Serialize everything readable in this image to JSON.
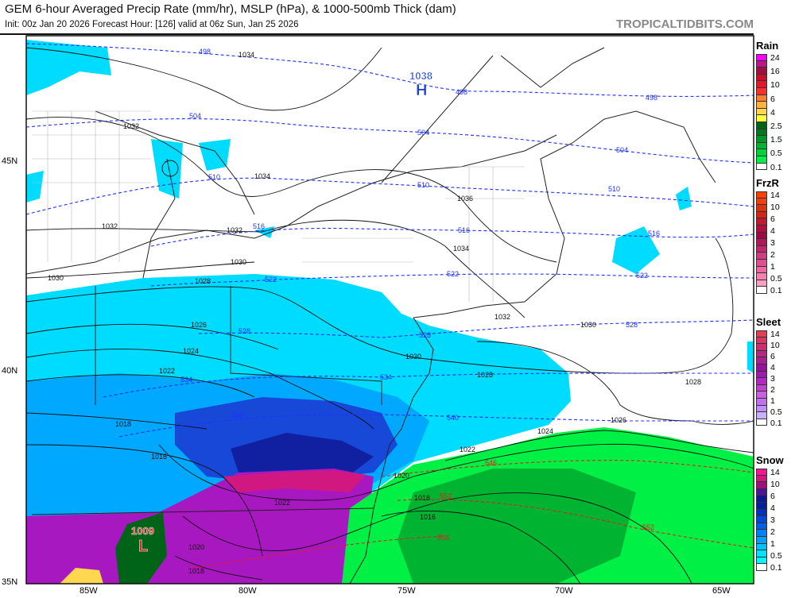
{
  "header": {
    "title": "GEM 6-hour Averaged Precip Rate (mm/hr), MSLP (hPa), & 1000-500mb Thick (dam)",
    "subtitle": "Init: 00z Jan 20 2026   Forecast Hour: [126]   valid at 06z Sun, Jan 25 2026",
    "brand": "TROPICALTIDBITS.COM"
  },
  "axes": {
    "lat": [
      "45N",
      "40N",
      "35N"
    ],
    "lon": [
      "85W",
      "80W",
      "75W",
      "70W",
      "65W"
    ]
  },
  "pressure_centers": [
    {
      "type": "H",
      "value": "1038",
      "color": "#1a3cd0"
    },
    {
      "type": "L",
      "value": "1009",
      "color": "#e02020"
    }
  ],
  "isobar_labels": [
    "1034",
    "1032",
    "1032",
    "1034",
    "1036",
    "1034",
    "1032",
    "1030",
    "1030",
    "1028",
    "1026",
    "1024",
    "1022",
    "1018",
    "1016",
    "1030",
    "1032",
    "1030",
    "1028",
    "1028",
    "1026",
    "1024",
    "1022",
    "1020",
    "1018",
    "1016",
    "1022",
    "1020",
    "1018"
  ],
  "thickness_labels": [
    "498",
    "498",
    "498",
    "504",
    "504",
    "504",
    "510",
    "510",
    "510",
    "516",
    "516",
    "516",
    "522",
    "522",
    "522",
    "528",
    "528",
    "528",
    "534",
    "534",
    "540",
    "540",
    "546",
    "552",
    "552",
    "558"
  ],
  "legends": [
    {
      "title": "Rain",
      "colors": [
        "#ff00ff",
        "#c0148c",
        "#a0103c",
        "#c8102c",
        "#e8142c",
        "#ff3030",
        "#ff8030",
        "#ffb040",
        "#ffd850",
        "#ffff40",
        "#006418",
        "#00781e",
        "#009628",
        "#00b432",
        "#00d23c",
        "#00f046",
        "#ffffff"
      ],
      "labels": [
        "24",
        "16",
        "10",
        "6",
        "4",
        "2.5",
        "1.5",
        "0.5",
        "0.1"
      ]
    },
    {
      "title": "FrzR",
      "colors": [
        "#ff4000",
        "#f04010",
        "#e03010",
        "#d02818",
        "#c01830",
        "#b01040",
        "#a00848",
        "#b01858",
        "#c02870",
        "#d03c80",
        "#e05090",
        "#f068a0",
        "#f880b0",
        "#ffa0c0",
        "#ffffff"
      ],
      "labels": [
        "14",
        "10",
        "6",
        "4",
        "3",
        "2",
        "1",
        "0.5",
        "0.1"
      ]
    },
    {
      "title": "Sleet",
      "colors": [
        "#e04050",
        "#d83860",
        "#c83070",
        "#b82880",
        "#a82090",
        "#9810a0",
        "#a018b0",
        "#b028c0",
        "#c040d0",
        "#c860e0",
        "#c070f0",
        "#c090ff",
        "#c8b0ff",
        "#ffffff"
      ],
      "labels": [
        "14",
        "10",
        "6",
        "4",
        "3",
        "2",
        "1",
        "0.5",
        "0.1"
      ]
    },
    {
      "title": "Snow",
      "colors": [
        "#ff1493",
        "#d01880",
        "#a01078",
        "#5010a0",
        "#101890",
        "#0020a0",
        "#0030c0",
        "#0048d8",
        "#0060e8",
        "#0080ff",
        "#00a0ff",
        "#00c0ff",
        "#00e0ff",
        "#00f8ff",
        "#ffffff"
      ],
      "labels": [
        "14",
        "10",
        "6",
        "4",
        "3",
        "2",
        "1",
        "0.5",
        "0.1"
      ]
    }
  ]
}
